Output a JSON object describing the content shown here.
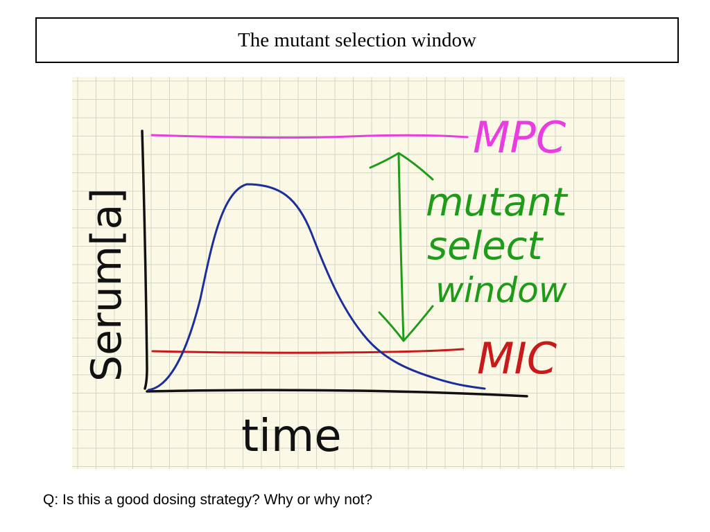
{
  "slide": {
    "title": "The mutant selection window",
    "question": "Q: Is this a good dosing strategy? Why or why not?"
  },
  "sketch": {
    "xlabel": "time",
    "ylabel": "Serum[a]",
    "mpc_label": "MPC",
    "mic_label": "MIC",
    "window_label": [
      "mutant",
      "select",
      "window"
    ],
    "colors": {
      "paper": "#fbf8e6",
      "grid": "#d2d6c8",
      "axes": "#111111",
      "curve": "#1c2e9a",
      "mpc": "#e83ee0",
      "mic": "#c8191b",
      "window": "#1f9b1a"
    }
  }
}
